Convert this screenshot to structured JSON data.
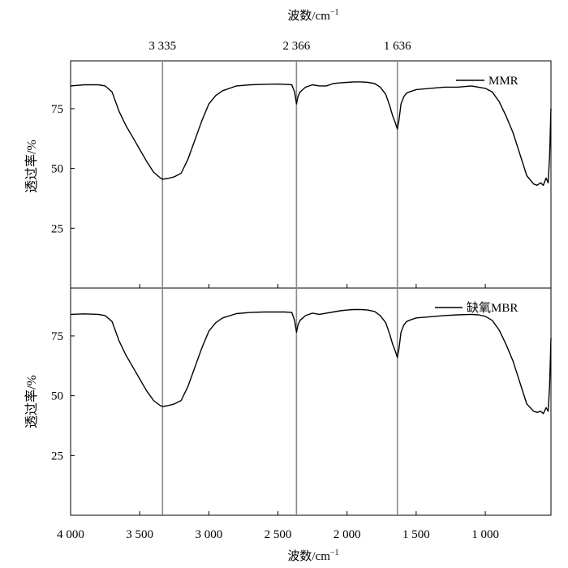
{
  "chart_data": {
    "type": "line",
    "top_axis": {
      "label": "波数/cm",
      "label_sup": "−1",
      "marked_wavenumbers": [
        3335,
        2366,
        1636
      ],
      "tick_labels": [
        "3 335",
        "2 366",
        "1 636"
      ]
    },
    "x": {
      "label": "波数/cm",
      "label_sup": "−1",
      "lim": [
        4000,
        525
      ],
      "ticks": [
        4000,
        3500,
        3000,
        2500,
        2000,
        1500,
        1000
      ],
      "tick_labels": [
        "4 000",
        "3 500",
        "3 000",
        "2 500",
        "2 000",
        "1 500",
        "1 000"
      ]
    },
    "panels": [
      {
        "legend": "MMR",
        "ylabel": "透过率/%",
        "yticks": [
          25,
          50,
          75
        ],
        "ytick_labels": [
          "25",
          "50",
          "75"
        ],
        "ylim": [
          0,
          95
        ],
        "x": [
          4000,
          3900,
          3800,
          3750,
          3700,
          3650,
          3600,
          3550,
          3500,
          3450,
          3400,
          3350,
          3335,
          3300,
          3250,
          3200,
          3150,
          3100,
          3050,
          3000,
          2950,
          2900,
          2800,
          2700,
          2600,
          2500,
          2450,
          2400,
          2380,
          2366,
          2355,
          2340,
          2320,
          2300,
          2250,
          2200,
          2150,
          2100,
          2050,
          2000,
          1950,
          1900,
          1850,
          1800,
          1760,
          1720,
          1690,
          1670,
          1650,
          1636,
          1625,
          1610,
          1590,
          1570,
          1550,
          1500,
          1400,
          1300,
          1200,
          1100,
          1050,
          1000,
          950,
          900,
          850,
          800,
          750,
          700,
          650,
          625,
          600,
          580,
          560,
          545,
          535,
          525
        ],
        "y": [
          84.5,
          85,
          85,
          84.5,
          82,
          74,
          68,
          63,
          58,
          53,
          48.5,
          46,
          45.5,
          45.8,
          46.5,
          48,
          54,
          62,
          70,
          77,
          80.5,
          82.5,
          84.5,
          85,
          85.2,
          85.3,
          85.2,
          85,
          82,
          77,
          80,
          82,
          83,
          84,
          85,
          84.5,
          84.5,
          85.5,
          85.8,
          86,
          86.2,
          86.2,
          86,
          85.5,
          84,
          81,
          76,
          72,
          69,
          66.5,
          70,
          77,
          80,
          81.5,
          82,
          83,
          83.5,
          84,
          84,
          84.5,
          84,
          83.5,
          82,
          78,
          72,
          65,
          56,
          47,
          43.5,
          43,
          44,
          43,
          46,
          44,
          55,
          75
        ]
      },
      {
        "legend": "缺氧MBR",
        "ylabel": "透过率/%",
        "yticks": [
          25,
          50,
          75
        ],
        "ytick_labels": [
          "25",
          "50",
          "75"
        ],
        "ylim": [
          0,
          95
        ],
        "x": [
          4000,
          3900,
          3800,
          3750,
          3700,
          3650,
          3600,
          3550,
          3500,
          3450,
          3400,
          3350,
          3335,
          3300,
          3250,
          3200,
          3150,
          3100,
          3050,
          3000,
          2950,
          2900,
          2800,
          2700,
          2600,
          2500,
          2450,
          2400,
          2380,
          2366,
          2355,
          2340,
          2320,
          2300,
          2250,
          2200,
          2150,
          2100,
          2050,
          2000,
          1950,
          1900,
          1850,
          1800,
          1760,
          1720,
          1690,
          1670,
          1650,
          1636,
          1625,
          1610,
          1590,
          1570,
          1550,
          1500,
          1400,
          1300,
          1200,
          1100,
          1050,
          1000,
          950,
          900,
          850,
          800,
          750,
          700,
          650,
          625,
          600,
          580,
          560,
          545,
          535,
          525
        ],
        "y": [
          84,
          84.2,
          84,
          83.5,
          81,
          73,
          67,
          62,
          57,
          52,
          48,
          45.8,
          45.5,
          45.8,
          46.5,
          48,
          54,
          62,
          70,
          77,
          80.5,
          82.5,
          84.3,
          84.8,
          85,
          85,
          85,
          84.8,
          81.5,
          76.5,
          79.5,
          81.5,
          82.5,
          83.5,
          84.5,
          84,
          84.5,
          85,
          85.5,
          85.8,
          86,
          86,
          85.8,
          85.2,
          83.5,
          80.5,
          75.5,
          71.5,
          68.5,
          66,
          69.5,
          76.5,
          79.5,
          81,
          81.5,
          82.5,
          83,
          83.5,
          83.8,
          84,
          83.8,
          83.2,
          81.5,
          77.5,
          71.5,
          64.5,
          55.5,
          46.5,
          43.5,
          43,
          43.5,
          42.5,
          45,
          43.5,
          54,
          74
        ]
      }
    ]
  }
}
